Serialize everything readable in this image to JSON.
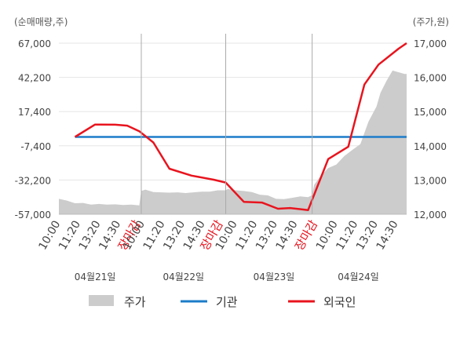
{
  "chart_data": {
    "type": "line",
    "left_axis_unit": "(순매매량,주)",
    "right_axis_unit": "(주가,원)",
    "left_ticks": [
      "67,000",
      "42,200",
      "17,400",
      "-7,400",
      "-32,200",
      "-57,000"
    ],
    "left_tick_values": [
      67000,
      42200,
      17400,
      -7400,
      -32200,
      -57000
    ],
    "right_ticks": [
      "17,000",
      "16,000",
      "15,000",
      "14,000",
      "13,000",
      "12,000"
    ],
    "right_tick_values": [
      17000,
      16000,
      15000,
      14000,
      13000,
      12000
    ],
    "ylim_left": [
      -57000,
      67000
    ],
    "ylim_right": [
      12000,
      17000
    ],
    "x_ticks": [
      {
        "label": "10:00",
        "pos": 0,
        "closing": false
      },
      {
        "label": "11:20",
        "pos": 1,
        "closing": false
      },
      {
        "label": "13:20",
        "pos": 2,
        "closing": false
      },
      {
        "label": "14:30",
        "pos": 3,
        "closing": false
      },
      {
        "label": "장마감",
        "pos": 4,
        "closing": true
      },
      {
        "label": "10:00",
        "pos": 4.2,
        "closing": false
      },
      {
        "label": "11:20",
        "pos": 5.2,
        "closing": false
      },
      {
        "label": "13:20",
        "pos": 6.2,
        "closing": false
      },
      {
        "label": "14:30",
        "pos": 7.2,
        "closing": false
      },
      {
        "label": "장마감",
        "pos": 8.1,
        "closing": true
      },
      {
        "label": "10:00",
        "pos": 8.8,
        "closing": false
      },
      {
        "label": "11:20",
        "pos": 9.8,
        "closing": false
      },
      {
        "label": "13:20",
        "pos": 10.8,
        "closing": false
      },
      {
        "label": "14:30",
        "pos": 11.8,
        "closing": false
      },
      {
        "label": "장마감",
        "pos": 12.8,
        "closing": true
      },
      {
        "label": "10:00",
        "pos": 13.8,
        "closing": false
      },
      {
        "label": "11:20",
        "pos": 14.8,
        "closing": false
      },
      {
        "label": "13:20",
        "pos": 15.8,
        "closing": false
      },
      {
        "label": "14:30",
        "pos": 16.8,
        "closing": false
      }
    ],
    "x_range": [
      0,
      17.3
    ],
    "day_labels": [
      {
        "label": "04월21일",
        "pos": 1.8
      },
      {
        "label": "04월22일",
        "pos": 6.2
      },
      {
        "label": "04월23일",
        "pos": 10.7
      },
      {
        "label": "04월24일",
        "pos": 14.9
      }
    ],
    "day_separators": [
      4.1,
      8.3,
      12.6
    ],
    "series": [
      {
        "name": "주가",
        "kind": "area",
        "axis": "right",
        "color": "#cccccc",
        "x": [
          0,
          0.4,
          0.8,
          1.2,
          1.6,
          2.0,
          2.4,
          2.8,
          3.2,
          3.6,
          4.0,
          4.1,
          4.3,
          4.7,
          5.1,
          5.5,
          5.9,
          6.3,
          6.7,
          7.1,
          7.5,
          7.9,
          8.3,
          8.4,
          8.8,
          9.2,
          9.6,
          10.0,
          10.4,
          10.8,
          11.2,
          11.6,
          12.0,
          12.4,
          12.6,
          12.7,
          13.0,
          13.4,
          13.8,
          14.2,
          14.6,
          15.0,
          15.4,
          15.8,
          16.0,
          16.3,
          16.6,
          16.9,
          17.2,
          17.3
        ],
        "values": [
          12450,
          12400,
          12320,
          12330,
          12280,
          12300,
          12280,
          12290,
          12270,
          12280,
          12260,
          12680,
          12720,
          12650,
          12640,
          12630,
          12640,
          12620,
          12640,
          12660,
          12660,
          12700,
          12700,
          12740,
          12700,
          12680,
          12650,
          12570,
          12550,
          12450,
          12440,
          12480,
          12520,
          12500,
          12560,
          12860,
          13100,
          13350,
          13450,
          13700,
          13880,
          14050,
          14700,
          15150,
          15550,
          15900,
          16200,
          16150,
          16100,
          16100
        ]
      },
      {
        "name": "기관",
        "kind": "line",
        "axis": "left",
        "color": "#1c7cc9",
        "x": [
          0.8,
          17.3
        ],
        "values": [
          -1000,
          -1000
        ]
      },
      {
        "name": "외국인",
        "kind": "line",
        "axis": "left",
        "color": "#e8141e",
        "x": [
          0.8,
          1.8,
          2.8,
          3.4,
          4.0,
          4.7,
          5.5,
          6.6,
          7.7,
          8.3,
          9.2,
          10.1,
          10.9,
          11.5,
          12.4,
          13.4,
          14.4,
          15.2,
          15.9,
          16.9,
          17.3
        ],
        "values": [
          -1000,
          8000,
          7900,
          7200,
          3200,
          -5000,
          -24000,
          -29000,
          -32000,
          -34000,
          -48000,
          -48500,
          -53000,
          -52500,
          -54000,
          -17000,
          -8000,
          37000,
          51500,
          63000,
          67000
        ]
      }
    ],
    "legend_position": "bottom"
  }
}
